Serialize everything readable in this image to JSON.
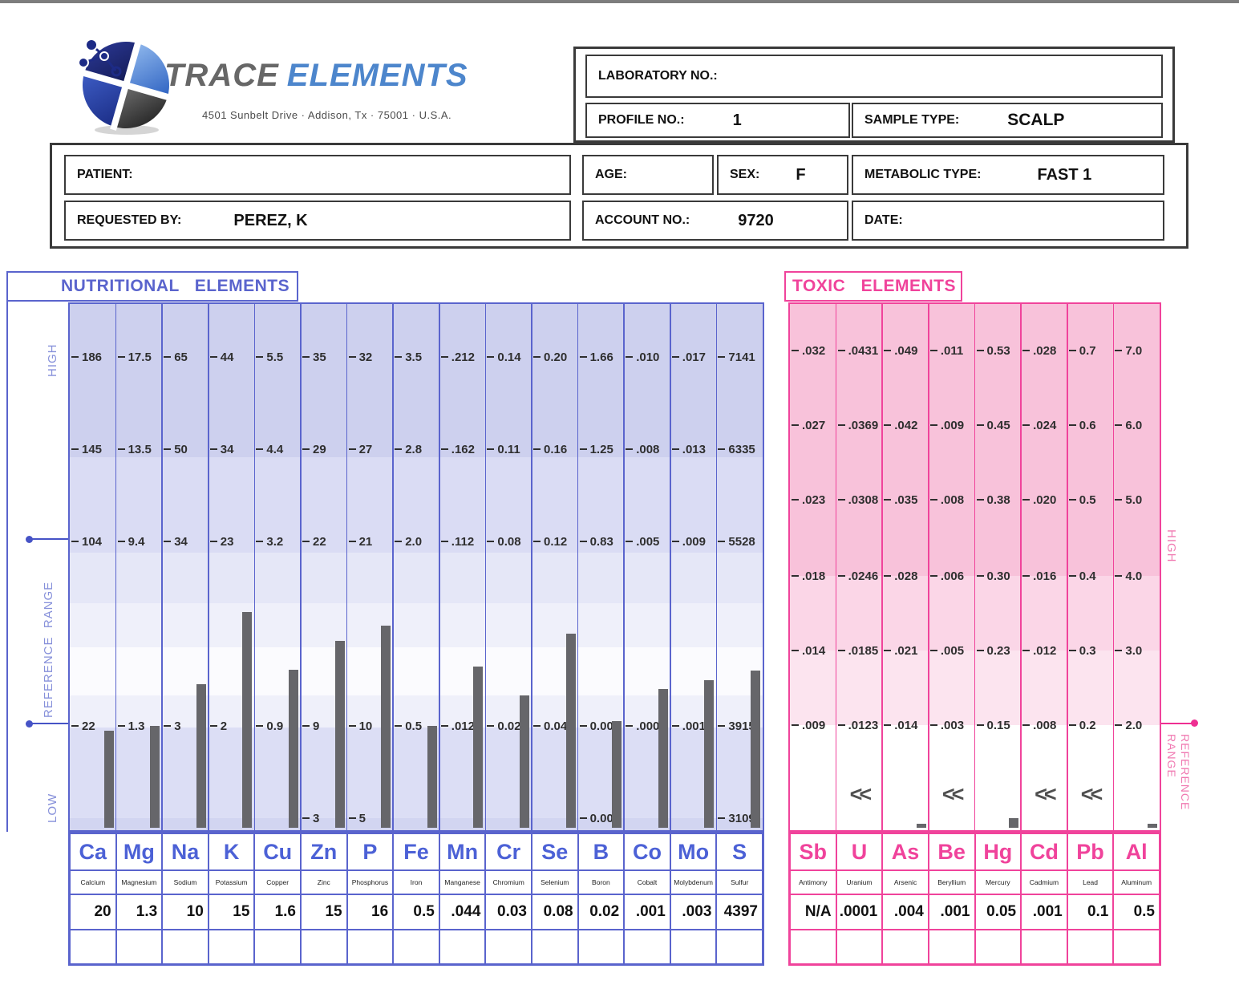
{
  "header": {
    "brand_primary": "TRACE",
    "brand_secondary": "ELEMENTS",
    "address": "4501 Sunbelt Drive · Addison, Tx · 75001 · U.S.A.",
    "laboratory_no_label": "LABORATORY NO.:",
    "laboratory_no_value": "",
    "profile_no_label": "PROFILE NO.:",
    "profile_no_value": "1",
    "sample_type_label": "SAMPLE TYPE:",
    "sample_type_value": "SCALP",
    "patient_label": "PATIENT:",
    "patient_value": "",
    "age_label": "AGE:",
    "age_value": "",
    "sex_label": "SEX:",
    "sex_value": "F",
    "metabolic_type_label": "METABOLIC TYPE:",
    "metabolic_type_value": "FAST 1",
    "requested_by_label": "REQUESTED BY:",
    "requested_by_value": "PEREZ, K",
    "account_no_label": "ACCOUNT NO.:",
    "account_no_value": "9720",
    "date_label": "DATE:",
    "date_value": ""
  },
  "colors": {
    "nutritional_accent": "#5a64cd",
    "toxic_accent": "#f0439b",
    "bar_color": "#66666a"
  },
  "chart_data": [
    {
      "type": "bar",
      "section": "nutritional",
      "title": "NUTRITIONAL ELEMENTS",
      "side_labels": {
        "high": "HIGH",
        "reference": "REFERENCE RANGE",
        "low": "LOW"
      },
      "legend_note": "scale ticks per element, reference range between dotted markers",
      "elements": [
        {
          "symbol": "Ca",
          "name": "Calcium",
          "value_label": "20",
          "value": 20,
          "ticks": [
            "186",
            "145",
            "104",
            "22"
          ],
          "extra_tick": null,
          "flag": null
        },
        {
          "symbol": "Mg",
          "name": "Magnesium",
          "value_label": "1.3",
          "value": 1.3,
          "ticks": [
            "17.5",
            "13.5",
            "9.4",
            "1.3"
          ],
          "extra_tick": null,
          "flag": null
        },
        {
          "symbol": "Na",
          "name": "Sodium",
          "value_label": "10",
          "value": 10,
          "ticks": [
            "65",
            "50",
            "34",
            "3"
          ],
          "extra_tick": null,
          "flag": null
        },
        {
          "symbol": "K",
          "name": "Potassium",
          "value_label": "15",
          "value": 15,
          "ticks": [
            "44",
            "34",
            "23",
            "2"
          ],
          "extra_tick": null,
          "flag": null
        },
        {
          "symbol": "Cu",
          "name": "Copper",
          "value_label": "1.6",
          "value": 1.6,
          "ticks": [
            "5.5",
            "4.4",
            "3.2",
            "0.9"
          ],
          "extra_tick": null,
          "flag": null
        },
        {
          "symbol": "Zn",
          "name": "Zinc",
          "value_label": "15",
          "value": 15,
          "ticks": [
            "35",
            "29",
            "22",
            "9"
          ],
          "extra_tick": "3",
          "flag": null
        },
        {
          "symbol": "P",
          "name": "Phosphorus",
          "value_label": "16",
          "value": 16,
          "ticks": [
            "32",
            "27",
            "21",
            "10"
          ],
          "extra_tick": "5",
          "flag": null
        },
        {
          "symbol": "Fe",
          "name": "Iron",
          "value_label": "0.5",
          "value": 0.5,
          "ticks": [
            "3.5",
            "2.8",
            "2.0",
            "0.5"
          ],
          "extra_tick": null,
          "flag": null
        },
        {
          "symbol": "Mn",
          "name": "Manganese",
          "value_label": ".044",
          "value": 0.044,
          "ticks": [
            ".212",
            ".162",
            ".112",
            ".012"
          ],
          "extra_tick": null,
          "flag": null
        },
        {
          "symbol": "Cr",
          "name": "Chromium",
          "value_label": "0.03",
          "value": 0.03,
          "ticks": [
            "0.14",
            "0.11",
            "0.08",
            "0.02"
          ],
          "extra_tick": null,
          "flag": null
        },
        {
          "symbol": "Se",
          "name": "Selenium",
          "value_label": "0.08",
          "value": 0.08,
          "ticks": [
            "0.20",
            "0.16",
            "0.12",
            "0.04"
          ],
          "extra_tick": null,
          "flag": null
        },
        {
          "symbol": "B",
          "name": "Boron",
          "value_label": "0.02",
          "value": 0.02,
          "ticks": [
            "1.66",
            "1.25",
            "0.83",
            "0.00"
          ],
          "extra_tick": "0.00",
          "flag": null
        },
        {
          "symbol": "Co",
          "name": "Cobalt",
          "value_label": ".001",
          "value": 0.001,
          "ticks": [
            ".010",
            ".008",
            ".005",
            ".000"
          ],
          "extra_tick": null,
          "flag": null
        },
        {
          "symbol": "Mo",
          "name": "Molybdenum",
          "value_label": ".003",
          "value": 0.003,
          "ticks": [
            ".017",
            ".013",
            ".009",
            ".001"
          ],
          "extra_tick": null,
          "flag": null
        },
        {
          "symbol": "S",
          "name": "Sulfur",
          "value_label": "4397",
          "value": 4397,
          "ticks": [
            "7141",
            "6335",
            "5528",
            "3915"
          ],
          "extra_tick": "3109",
          "flag": null
        }
      ]
    },
    {
      "type": "bar",
      "section": "toxic",
      "title": "TOXIC ELEMENTS",
      "side_labels": {
        "high": "HIGH",
        "reference": "REFERENCE RANGE"
      },
      "legend_note": "<< indicates result below detection limit",
      "elements": [
        {
          "symbol": "Sb",
          "name": "Antimony",
          "value_label": "N/A",
          "value": null,
          "ticks": [
            ".032",
            ".027",
            ".023",
            ".018",
            ".014",
            ".009"
          ],
          "extra_tick": null,
          "flag": null
        },
        {
          "symbol": "U",
          "name": "Uranium",
          "value_label": ".0001",
          "value": 0.0001,
          "ticks": [
            ".0431",
            ".0369",
            ".0308",
            ".0246",
            ".0185",
            ".0123"
          ],
          "extra_tick": null,
          "flag": "<<"
        },
        {
          "symbol": "As",
          "name": "Arsenic",
          "value_label": ".004",
          "value": 0.004,
          "ticks": [
            ".049",
            ".042",
            ".035",
            ".028",
            ".021",
            ".014"
          ],
          "extra_tick": null,
          "flag": null
        },
        {
          "symbol": "Be",
          "name": "Beryllium",
          "value_label": ".001",
          "value": 0.001,
          "ticks": [
            ".011",
            ".009",
            ".008",
            ".006",
            ".005",
            ".003"
          ],
          "extra_tick": null,
          "flag": "<<"
        },
        {
          "symbol": "Hg",
          "name": "Mercury",
          "value_label": "0.05",
          "value": 0.05,
          "ticks": [
            "0.53",
            "0.45",
            "0.38",
            "0.30",
            "0.23",
            "0.15"
          ],
          "extra_tick": null,
          "flag": null
        },
        {
          "symbol": "Cd",
          "name": "Cadmium",
          "value_label": ".001",
          "value": 0.001,
          "ticks": [
            ".028",
            ".024",
            ".020",
            ".016",
            ".012",
            ".008"
          ],
          "extra_tick": null,
          "flag": "<<"
        },
        {
          "symbol": "Pb",
          "name": "Lead",
          "value_label": "0.1",
          "value": 0.1,
          "ticks": [
            "0.7",
            "0.6",
            "0.5",
            "0.4",
            "0.3",
            "0.2"
          ],
          "extra_tick": null,
          "flag": "<<"
        },
        {
          "symbol": "Al",
          "name": "Aluminum",
          "value_label": "0.5",
          "value": 0.5,
          "ticks": [
            "7.0",
            "6.0",
            "5.0",
            "4.0",
            "3.0",
            "2.0"
          ],
          "extra_tick": null,
          "flag": null
        }
      ]
    }
  ]
}
